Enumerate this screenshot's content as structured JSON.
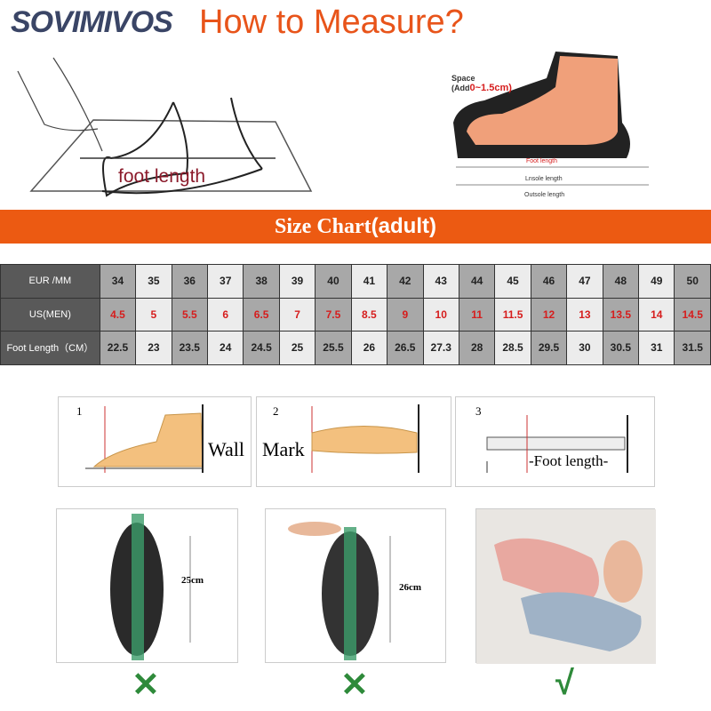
{
  "brand": "SOVIMIVOS",
  "title": "How to Measure?",
  "illustration_left": {
    "label": "foot length"
  },
  "illustration_right": {
    "space_label": "Space",
    "space_add": "(Add",
    "space_range": "0~1.5cm)",
    "foot_length": "Foot length",
    "insole_length": "Lnsole length",
    "outsole_length": "Outsole length"
  },
  "banner": {
    "text": "Size Chart",
    "suffix": "(adult)"
  },
  "size_table": {
    "rows": [
      {
        "header": "EUR /MM",
        "values": [
          "34",
          "35",
          "36",
          "37",
          "38",
          "39",
          "40",
          "41",
          "42",
          "43",
          "44",
          "45",
          "46",
          "47",
          "48",
          "49",
          "50"
        ]
      },
      {
        "header": "US(MEN)",
        "values": [
          "4.5",
          "5",
          "5.5",
          "6",
          "6.5",
          "7",
          "7.5",
          "8.5",
          "9",
          "10",
          "11",
          "11.5",
          "12",
          "13",
          "13.5",
          "14",
          "14.5"
        ]
      },
      {
        "header": "Foot Length（CM）",
        "values": [
          "22.5",
          "23",
          "23.5",
          "24",
          "24.5",
          "25",
          "25.5",
          "26",
          "26.5",
          "27.3",
          "28",
          "28.5",
          "29.5",
          "30",
          "30.5",
          "31",
          "31.5"
        ]
      }
    ]
  },
  "steps": [
    {
      "number": "1",
      "label": "Wall"
    },
    {
      "number": "2",
      "label": "Mark"
    },
    {
      "number": "3",
      "label": "-Foot length-"
    }
  ],
  "examples": [
    {
      "measure": "25cm",
      "verdict": "✕"
    },
    {
      "measure": "26cm",
      "verdict": "✕"
    },
    {
      "measure": "",
      "verdict": "√"
    }
  ],
  "colors": {
    "accent": "#ec5a12",
    "us_text": "#d61d1d",
    "check": "#2e8a3a"
  }
}
